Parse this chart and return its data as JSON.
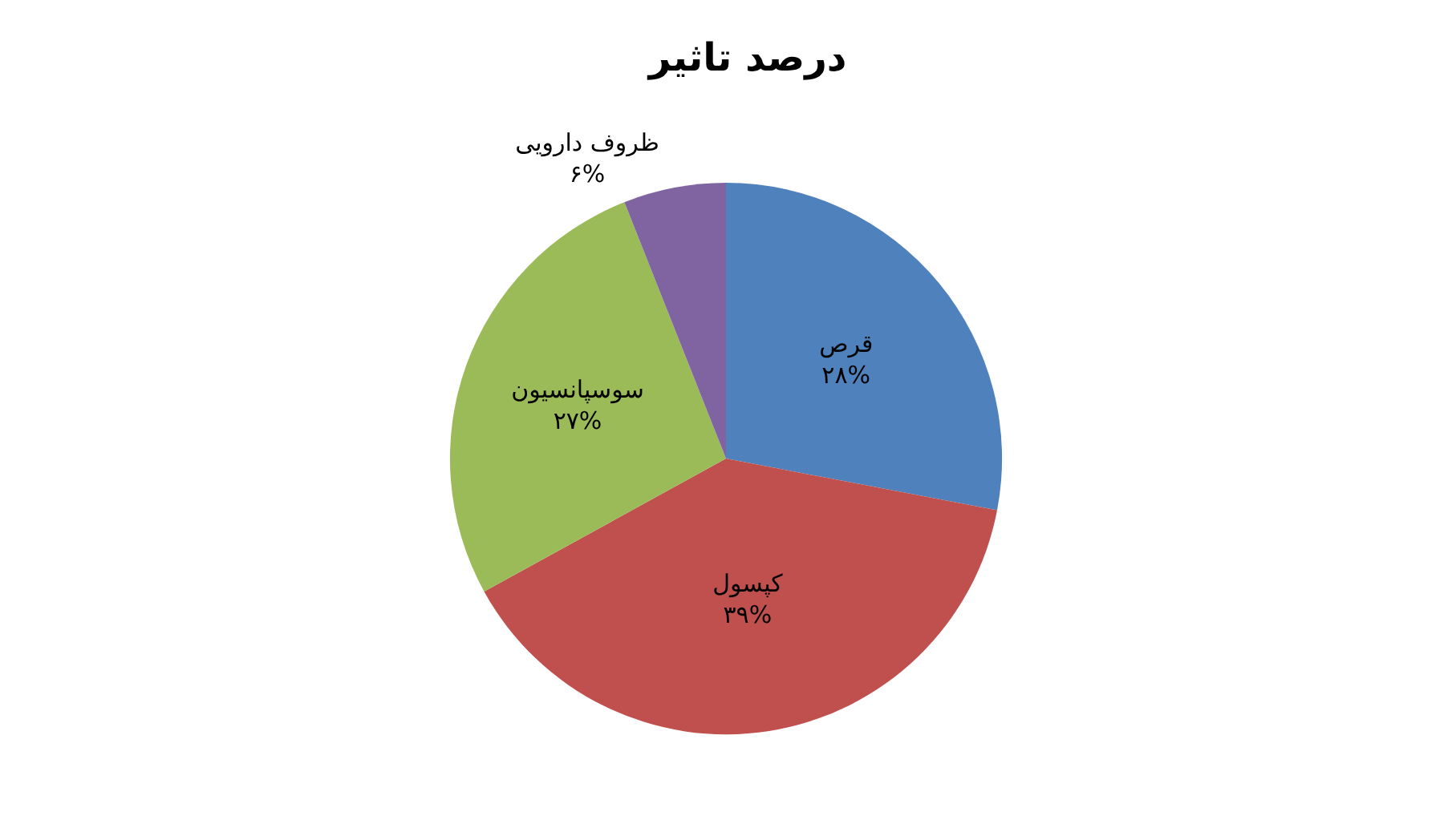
{
  "chart_data": {
    "type": "pie",
    "title": "درصد تاثیر",
    "categories": [
      "قرص",
      "کپسول",
      "سوسپانسیون",
      "ظروف دارویی"
    ],
    "values": [
      28,
      39,
      27,
      6
    ],
    "value_labels": [
      "۲۸%",
      "۳۹%",
      "۲۷%",
      "۶%"
    ],
    "colors": [
      "#4f81bd",
      "#c0504d",
      "#9bbb59",
      "#8064a2"
    ],
    "legend": false
  }
}
